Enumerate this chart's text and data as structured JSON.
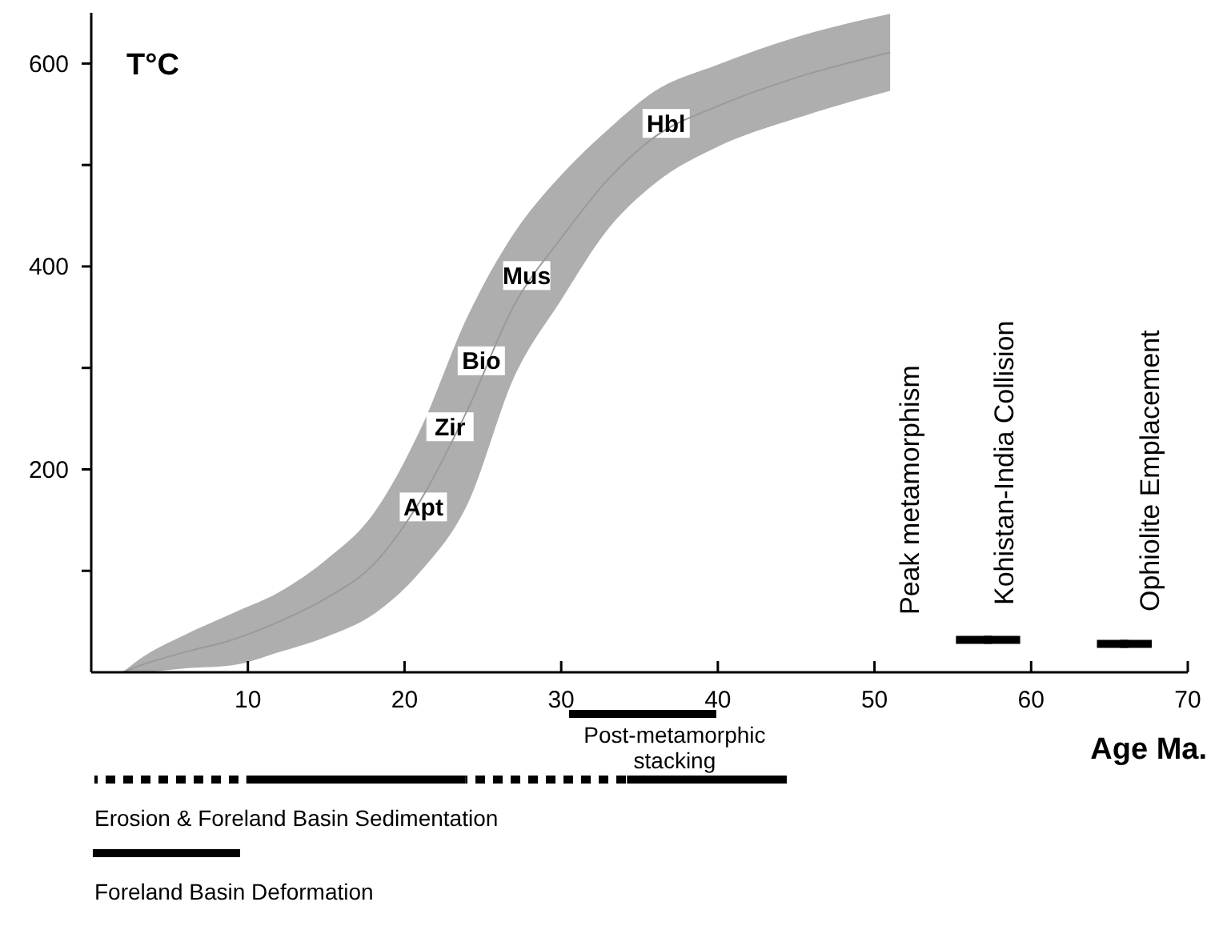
{
  "chart_data": [
    {
      "type": "line",
      "xlabel": "Age Ma.",
      "ylabel": "T°C",
      "xlim": [
        0,
        70
      ],
      "ylim": [
        0,
        650
      ],
      "xticks": [
        10,
        20,
        30,
        40,
        50,
        60,
        70
      ],
      "yticks": [
        {
          "value": 100,
          "label": null
        },
        200,
        {
          "value": 300,
          "label": null
        },
        400,
        {
          "value": 500,
          "label": null
        },
        600
      ],
      "grid": false,
      "series": [
        {
          "color": "#9a9a9a",
          "x": [
            2,
            3,
            6,
            9,
            12,
            15,
            18,
            21,
            24,
            27,
            30,
            33,
            36,
            40,
            45,
            51
          ],
          "values": [
            0,
            6,
            20,
            32,
            50,
            73,
            106,
            169,
            258,
            362,
            428,
            486,
            528,
            558,
            586,
            611
          ],
          "lower": [
            0,
            0,
            4,
            7,
            20,
            35,
            57,
            99,
            165,
            291,
            367,
            437,
            482,
            518,
            546,
            573
          ],
          "upper": [
            0,
            12,
            37,
            58,
            79,
            111,
            156,
            239,
            350,
            433,
            490,
            535,
            573,
            599,
            626,
            649
          ]
        },
        {
          "type": "scatter",
          "marker": "square",
          "color": "#000000",
          "x": [
            57.25,
            65.95
          ],
          "values": [
            32,
            28
          ],
          "xerrors": [
            2.05,
            1.75
          ]
        }
      ],
      "annotations": [
        "Peak metamorphism",
        "Kohistan-India Collision",
        "Ophiolite Emplacement",
        {
          "text": "Hbl",
          "x": 36.7,
          "y": 541
        },
        {
          "text": "Mus",
          "x": 27.8,
          "y": 391
        },
        {
          "text": "Bio",
          "x": 24.9,
          "y": 307
        },
        {
          "text": "Zir",
          "x": 22.9,
          "y": 242
        },
        {
          "text": "Apt",
          "x": 21.2,
          "y": 163
        }
      ]
    },
    {
      "type": "bar",
      "orientation": "horizontal",
      "categories": [
        "Post-metamorphic stacking",
        "Erosion & Foreland Basin Sedimentation",
        "Foreland Basin Deformation"
      ],
      "xlim": [
        0,
        70
      ],
      "series": [
        {
          "color": "#000000",
          "values": [
            9.4,
            14,
            9.4
          ],
          "base": [
            30.5,
            9.9,
            0.1
          ]
        },
        {
          "color": "#000000",
          "values": [
            null,
            9.2,
            null
          ],
          "base": [
            null,
            0.2,
            null
          ]
        },
        {
          "color": "#000000",
          "values": [
            null,
            10.3,
            null
          ],
          "base": [
            null,
            23.9,
            null
          ]
        },
        {
          "color": "#000000",
          "values": [
            null,
            10.2,
            null
          ],
          "base": [
            null,
            34.2,
            null
          ]
        }
      ]
    }
  ]
}
